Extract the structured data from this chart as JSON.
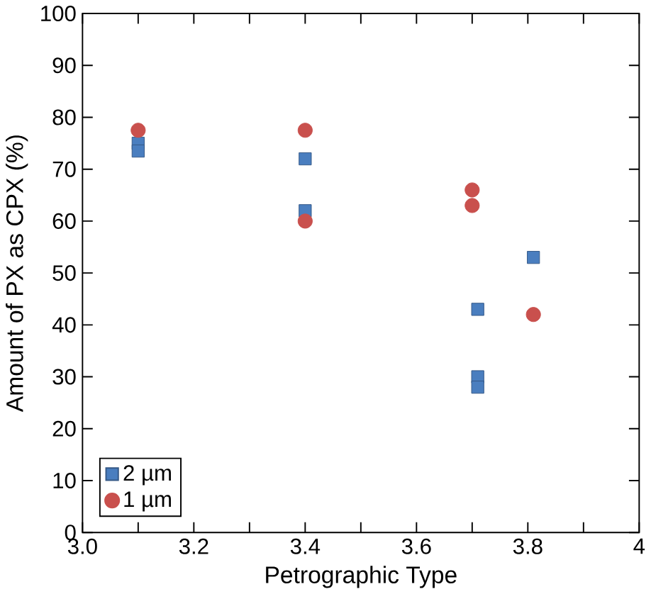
{
  "chart_data": {
    "type": "scatter",
    "xlabel": "Petrographic Type",
    "ylabel": "Amount of PX as CPX (%)",
    "xlim": [
      3.0,
      4
    ],
    "ylim": [
      0,
      100
    ],
    "xticks": [
      {
        "value": 3.0,
        "label": "3.0"
      },
      {
        "value": 3.1,
        "label": null
      },
      {
        "value": 3.2,
        "label": "3.2"
      },
      {
        "value": 3.3,
        "label": null
      },
      {
        "value": 3.4,
        "label": "3.4"
      },
      {
        "value": 3.5,
        "label": null
      },
      {
        "value": 3.6,
        "label": "3.6"
      },
      {
        "value": 3.7,
        "label": null
      },
      {
        "value": 3.8,
        "label": "3.8"
      },
      {
        "value": 3.9,
        "label": null
      },
      {
        "value": 4,
        "label": "4"
      }
    ],
    "yticks": [
      0,
      10,
      20,
      30,
      40,
      50,
      60,
      70,
      80,
      90,
      100
    ],
    "grid": false,
    "legend": "bottom left",
    "series": [
      {
        "name": "2 µm",
        "color": "#4a7ebf",
        "marker": "square",
        "x": [
          3.1,
          3.1,
          3.4,
          3.4,
          3.71,
          3.71,
          3.71,
          3.81
        ],
        "values": [
          75,
          73.5,
          72,
          62,
          43,
          30,
          28,
          53
        ]
      },
      {
        "name": "1 µm",
        "color": "#c9504d",
        "marker": "circle",
        "x": [
          3.1,
          3.4,
          3.4,
          3.7,
          3.7,
          3.81
        ],
        "values": [
          77.5,
          77.5,
          60,
          66,
          63,
          42
        ]
      }
    ]
  }
}
